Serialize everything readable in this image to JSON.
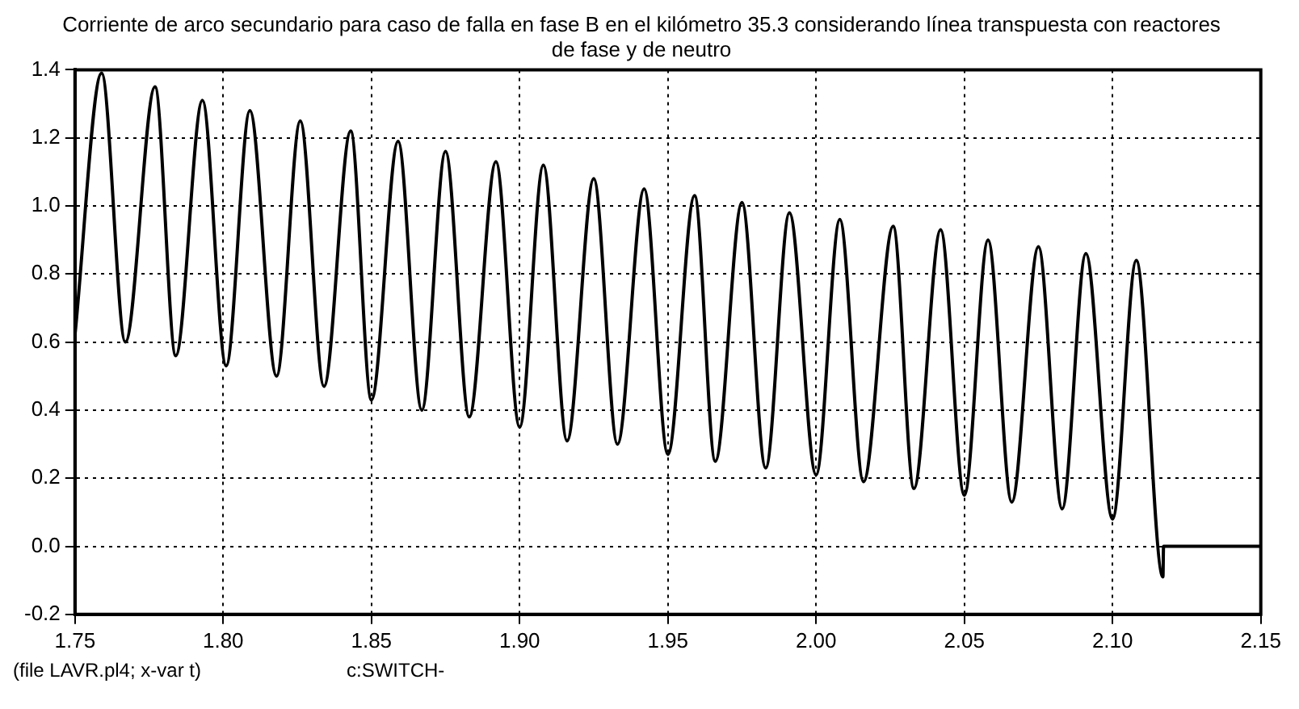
{
  "chart_data": {
    "type": "line",
    "title": "Corriente de arco secundario para caso de falla en fase B en el kilómetro 35.3 considerando línea transpuesta con reactores de fase y de neutro",
    "x": [
      1.75,
      1.759,
      1.767,
      1.777,
      1.784,
      1.793,
      1.801,
      1.809,
      1.818,
      1.826,
      1.834,
      1.843,
      1.85,
      1.859,
      1.867,
      1.875,
      1.883,
      1.892,
      1.9,
      1.908,
      1.916,
      1.925,
      1.933,
      1.942,
      1.95,
      1.959,
      1.966,
      1.975,
      1.983,
      1.991,
      2.0,
      2.008,
      2.016,
      2.026,
      2.033,
      2.042,
      2.05,
      2.058,
      2.066,
      2.075,
      2.083,
      2.091,
      2.1,
      2.108,
      2.117,
      2.1172,
      2.15
    ],
    "series": [
      {
        "color": "#000000",
        "values": [
          0.62,
          1.39,
          0.6,
          1.35,
          0.56,
          1.31,
          0.53,
          1.28,
          0.5,
          1.25,
          0.47,
          1.22,
          0.43,
          1.19,
          0.4,
          1.16,
          0.38,
          1.13,
          0.35,
          1.12,
          0.31,
          1.08,
          0.3,
          1.05,
          0.27,
          1.03,
          0.25,
          1.01,
          0.23,
          0.98,
          0.21,
          0.96,
          0.19,
          0.94,
          0.17,
          0.93,
          0.15,
          0.9,
          0.13,
          0.88,
          0.11,
          0.86,
          0.08,
          0.84,
          -0.09,
          0.0,
          0.0
        ]
      }
    ],
    "xlim": [
      1.75,
      2.15
    ],
    "xticks": [
      1.75,
      {
        "value": 1.8,
        "label": "1.80"
      },
      {
        "value": 1.85,
        "label": "1.85"
      },
      {
        "value": 1.9,
        "label": "1.90"
      },
      {
        "value": 1.95,
        "label": "1.95"
      },
      {
        "value": 2.0,
        "label": "2.00"
      },
      2.05,
      {
        "value": 2.1,
        "label": "2.10"
      },
      2.15
    ],
    "ylim": [
      -0.2,
      1.4
    ],
    "yticks": [
      -0.2,
      {
        "value": 0,
        "label": "0.0"
      },
      0.2,
      0.4,
      0.6,
      0.8,
      {
        "value": 1,
        "label": "1.0"
      },
      1.2,
      1.4
    ],
    "grid": true,
    "annotations": [
      "(file LAVR.pl4; x-var t)",
      "c:SWITCH-"
    ]
  }
}
